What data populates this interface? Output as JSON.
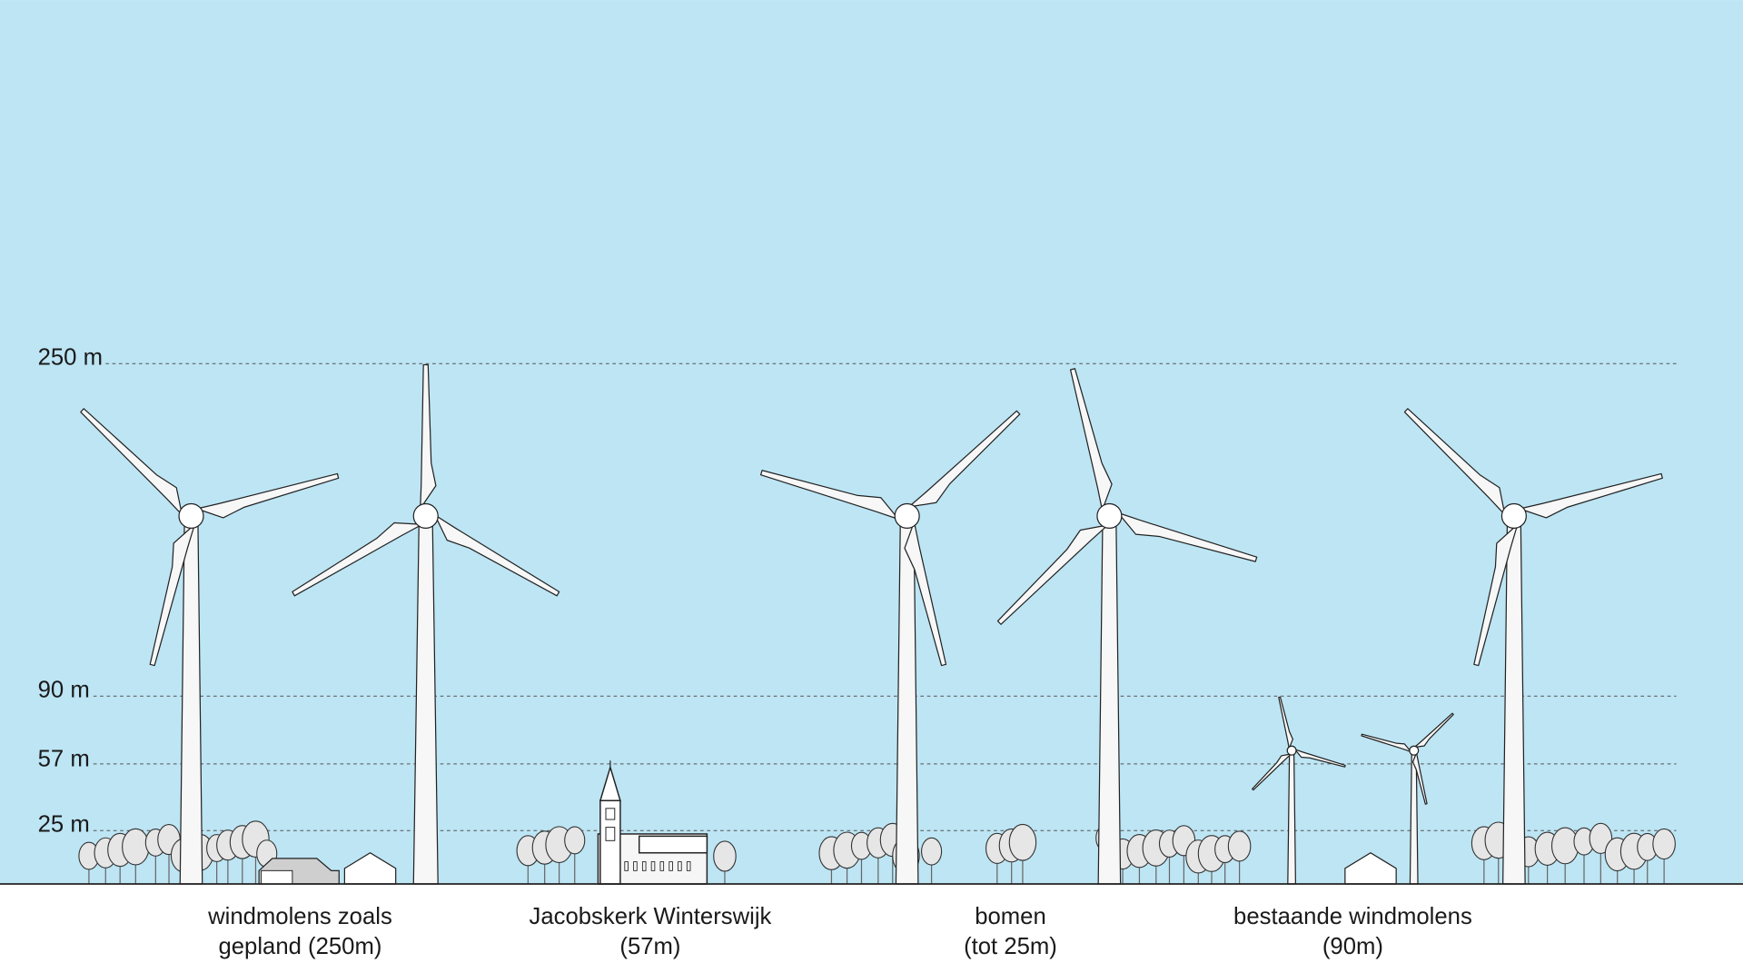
{
  "colors": {
    "sky": "#bde5f4",
    "ground": "#ffffff",
    "line": "#1a1a1a",
    "tree": "#e6e6e6",
    "structure": "#f4f4f4"
  },
  "scale_labels": [
    "250 m",
    "90 m",
    "57 m",
    "25 m"
  ],
  "captions": [
    {
      "line1": "windmolens zoals",
      "line2": "gepland (250m)"
    },
    {
      "line1": "Jacobskerk Winterswijk",
      "line2": "(57m)"
    },
    {
      "line1": "bomen",
      "line2": "(tot 25m)"
    },
    {
      "line1": "bestaande windmolens",
      "line2": "(90m)"
    }
  ]
}
